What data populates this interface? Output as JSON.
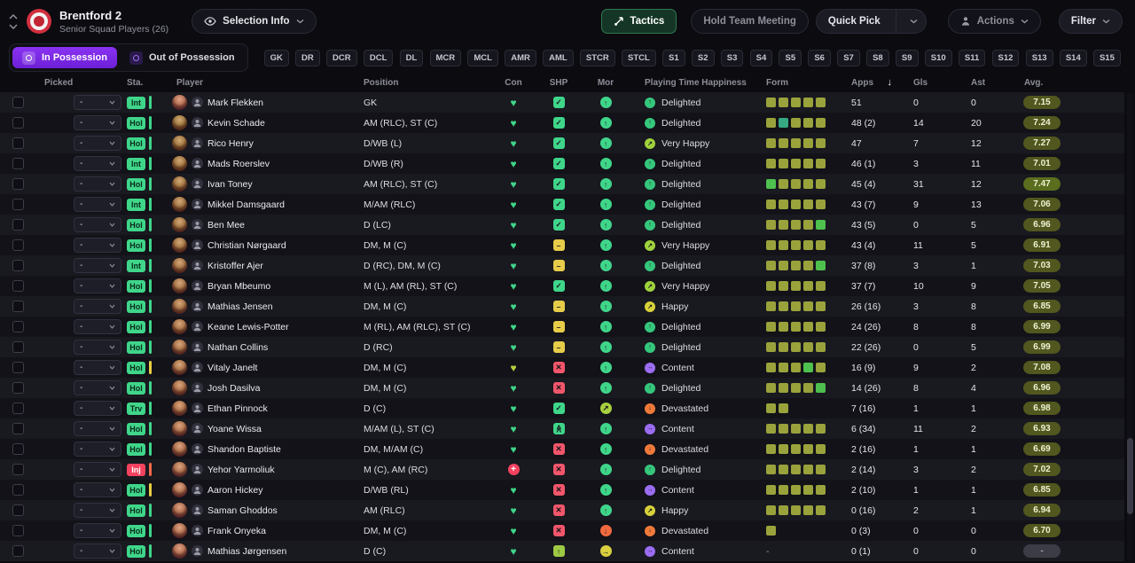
{
  "topbar": {
    "club_name": "Brentford 2",
    "club_subtitle": "Senior Squad Players (26)",
    "selection_info_label": "Selection Info",
    "tactics_label": "Tactics",
    "hold_team_meeting_label": "Hold Team Meeting",
    "quick_pick_label": "Quick Pick",
    "actions_label": "Actions",
    "filter_label": "Filter"
  },
  "possession_tabs": [
    {
      "label": "In Possession",
      "active": true
    },
    {
      "label": "Out of Possession",
      "active": false
    }
  ],
  "position_filters": [
    "GK",
    "DR",
    "DCR",
    "DCL",
    "DL",
    "MCR",
    "MCL",
    "AMR",
    "AML",
    "STCR",
    "STCL",
    "S1",
    "S2",
    "S3",
    "S4",
    "S5",
    "S6",
    "S7",
    "S8",
    "S9",
    "S10",
    "S11",
    "S12",
    "S13",
    "S14",
    "S15"
  ],
  "table": {
    "headers": [
      "Picked",
      "Sta.",
      "Player",
      "Position",
      "Con",
      "SHP",
      "Mor",
      "Playing Time Happiness",
      "Form",
      "Apps",
      "Gls",
      "Ast",
      "Avg."
    ],
    "sort_column": "Apps",
    "rows": [
      {
        "picked": "-",
        "status": "Int",
        "bar": "green",
        "name": "Mark Flekken",
        "position": "GK",
        "con": "fit",
        "shp": "check",
        "mor": "good",
        "happiness": "Delighted",
        "form": [
          "o",
          "o",
          "o",
          "o",
          "o"
        ],
        "apps": "51",
        "gls": "0",
        "ast": "0",
        "avg": "7.15"
      },
      {
        "picked": "-",
        "status": "Hol",
        "bar": "green",
        "name": "Kevin Schade",
        "position": "AM (RLC), ST (C)",
        "con": "fit",
        "shp": "check",
        "mor": "good",
        "happiness": "Delighted",
        "form": [
          "o",
          "t",
          "o",
          "o",
          "o"
        ],
        "apps": "48 (2)",
        "gls": "14",
        "ast": "20",
        "avg": "7.24"
      },
      {
        "picked": "-",
        "status": "Hol",
        "bar": "green",
        "name": "Rico Henry",
        "position": "D/WB (L)",
        "con": "fit",
        "shp": "check",
        "mor": "good",
        "happiness": "Very Happy",
        "form": [
          "o",
          "o",
          "o",
          "o",
          "o"
        ],
        "apps": "47",
        "gls": "7",
        "ast": "12",
        "avg": "7.27"
      },
      {
        "picked": "-",
        "status": "Int",
        "bar": "green",
        "name": "Mads Roerslev",
        "position": "D/WB (R)",
        "con": "fit",
        "shp": "check",
        "mor": "good",
        "happiness": "Delighted",
        "form": [
          "o",
          "o",
          "o",
          "o",
          "o"
        ],
        "apps": "46 (1)",
        "gls": "3",
        "ast": "11",
        "avg": "7.01"
      },
      {
        "picked": "-",
        "status": "Hol",
        "bar": "green",
        "name": "Ivan Toney",
        "position": "AM (RLC), ST (C)",
        "con": "fit",
        "shp": "check",
        "mor": "good",
        "happiness": "Delighted",
        "form": [
          "g",
          "o",
          "o",
          "o",
          "o"
        ],
        "apps": "45 (4)",
        "gls": "31",
        "ast": "12",
        "avg": "7.47"
      },
      {
        "picked": "-",
        "status": "Int",
        "bar": "green",
        "name": "Mikkel Damsgaard",
        "position": "M/AM (RLC)",
        "con": "fit",
        "shp": "check",
        "mor": "good",
        "happiness": "Delighted",
        "form": [
          "o",
          "o",
          "o",
          "o",
          "o"
        ],
        "apps": "43 (7)",
        "gls": "9",
        "ast": "13",
        "avg": "7.06"
      },
      {
        "picked": "-",
        "status": "Hol",
        "bar": "green",
        "name": "Ben Mee",
        "position": "D (LC)",
        "con": "fit",
        "shp": "check",
        "mor": "good",
        "happiness": "Delighted",
        "form": [
          "o",
          "o",
          "o",
          "o",
          "g"
        ],
        "apps": "43 (5)",
        "gls": "0",
        "ast": "5",
        "avg": "6.96"
      },
      {
        "picked": "-",
        "status": "Hol",
        "bar": "green",
        "name": "Christian Nørgaard",
        "position": "DM, M (C)",
        "con": "fit",
        "shp": "dash",
        "mor": "good",
        "happiness": "Very Happy",
        "form": [
          "o",
          "o",
          "o",
          "o",
          "o"
        ],
        "apps": "43 (4)",
        "gls": "11",
        "ast": "5",
        "avg": "6.91"
      },
      {
        "picked": "-",
        "status": "Int",
        "bar": "green",
        "name": "Kristoffer Ajer",
        "position": "D (RC), DM, M (C)",
        "con": "fit",
        "shp": "dash",
        "mor": "good",
        "happiness": "Delighted",
        "form": [
          "o",
          "o",
          "o",
          "o",
          "g"
        ],
        "apps": "37 (8)",
        "gls": "3",
        "ast": "1",
        "avg": "7.03"
      },
      {
        "picked": "-",
        "status": "Hol",
        "bar": "green",
        "name": "Bryan Mbeumo",
        "position": "M (L), AM (RL), ST (C)",
        "con": "fit",
        "shp": "check",
        "mor": "good",
        "happiness": "Very Happy",
        "form": [
          "o",
          "o",
          "o",
          "o",
          "o"
        ],
        "apps": "37 (7)",
        "gls": "10",
        "ast": "9",
        "avg": "7.05"
      },
      {
        "picked": "-",
        "status": "Hol",
        "bar": "green",
        "name": "Mathias Jensen",
        "position": "DM, M (C)",
        "con": "fit",
        "shp": "dash",
        "mor": "good",
        "happiness": "Happy",
        "form": [
          "o",
          "o",
          "o",
          "o",
          "o"
        ],
        "apps": "26 (16)",
        "gls": "3",
        "ast": "8",
        "avg": "6.85"
      },
      {
        "picked": "-",
        "status": "Hol",
        "bar": "green",
        "name": "Keane Lewis-Potter",
        "position": "M (RL), AM (RLC), ST (C)",
        "con": "fit",
        "shp": "dash",
        "mor": "good",
        "happiness": "Delighted",
        "form": [
          "o",
          "o",
          "o",
          "o",
          "o"
        ],
        "apps": "24 (26)",
        "gls": "8",
        "ast": "8",
        "avg": "6.99"
      },
      {
        "picked": "-",
        "status": "Hol",
        "bar": "green",
        "name": "Nathan Collins",
        "position": "D (RC)",
        "con": "fit",
        "shp": "dash",
        "mor": "good",
        "happiness": "Delighted",
        "form": [
          "o",
          "o",
          "o",
          "o",
          "o"
        ],
        "apps": "22 (26)",
        "gls": "0",
        "ast": "5",
        "avg": "6.99"
      },
      {
        "picked": "-",
        "status": "Hol",
        "bar": "yellow",
        "name": "Vitaly Janelt",
        "position": "DM, M (C)",
        "con": "ok",
        "shp": "cross",
        "mor": "good",
        "happiness": "Content",
        "form": [
          "o",
          "o",
          "o",
          "g",
          "o"
        ],
        "apps": "16 (9)",
        "gls": "9",
        "ast": "2",
        "avg": "7.08"
      },
      {
        "picked": "-",
        "status": "Hol",
        "bar": "green",
        "name": "Josh Dasilva",
        "position": "DM, M (C)",
        "con": "fit",
        "shp": "cross",
        "mor": "good",
        "happiness": "Delighted",
        "form": [
          "o",
          "o",
          "o",
          "o",
          "g"
        ],
        "apps": "14 (26)",
        "gls": "8",
        "ast": "4",
        "avg": "6.96"
      },
      {
        "picked": "-",
        "status": "Trv",
        "bar": "green",
        "name": "Ethan Pinnock",
        "position": "D (C)",
        "con": "fit",
        "shp": "check",
        "mor": "ok",
        "happiness": "Devastated",
        "form": [
          "o",
          "o"
        ],
        "apps": "7 (16)",
        "gls": "1",
        "ast": "1",
        "avg": "6.98"
      },
      {
        "picked": "-",
        "status": "Hol",
        "bar": "green",
        "name": "Yoane Wissa",
        "position": "M/AM (L), ST (C)",
        "con": "fit",
        "shp": "rise",
        "mor": "good",
        "happiness": "Content",
        "form": [
          "o",
          "o",
          "o",
          "o",
          "o"
        ],
        "apps": "6 (34)",
        "gls": "11",
        "ast": "2",
        "avg": "6.93"
      },
      {
        "picked": "-",
        "status": "Hol",
        "bar": "green",
        "name": "Shandon Baptiste",
        "position": "DM, M/AM (C)",
        "con": "fit",
        "shp": "cross",
        "mor": "good",
        "happiness": "Devastated",
        "form": [
          "o",
          "o",
          "o",
          "o",
          "o"
        ],
        "apps": "2 (16)",
        "gls": "1",
        "ast": "1",
        "avg": "6.69"
      },
      {
        "picked": "-",
        "status": "Inj",
        "bar": "red",
        "name": "Yehor Yarmoliuk",
        "position": "M (C), AM (RC)",
        "con": "medical",
        "shp": "cross",
        "mor": "good",
        "happiness": "Delighted",
        "form": [
          "o",
          "o",
          "o",
          "o",
          "o"
        ],
        "apps": "2 (14)",
        "gls": "3",
        "ast": "2",
        "avg": "7.02"
      },
      {
        "picked": "-",
        "status": "Hol",
        "bar": "yellow",
        "name": "Aaron Hickey",
        "position": "D/WB (RL)",
        "con": "fit",
        "shp": "cross",
        "mor": "good",
        "happiness": "Content",
        "form": [
          "o",
          "o",
          "o",
          "o",
          "o"
        ],
        "apps": "2 (10)",
        "gls": "1",
        "ast": "1",
        "avg": "6.85"
      },
      {
        "picked": "-",
        "status": "Hol",
        "bar": "green",
        "name": "Saman Ghoddos",
        "position": "AM (RLC)",
        "con": "fit",
        "shp": "cross",
        "mor": "good",
        "happiness": "Happy",
        "form": [
          "o",
          "o",
          "o",
          "o",
          "o"
        ],
        "apps": "0 (16)",
        "gls": "2",
        "ast": "1",
        "avg": "6.94"
      },
      {
        "picked": "-",
        "status": "Hol",
        "bar": "green",
        "name": "Frank Onyeka",
        "position": "DM, M (C)",
        "con": "fit",
        "shp": "cross",
        "mor": "poor",
        "happiness": "Devastated",
        "form": [
          "o"
        ],
        "apps": "0 (3)",
        "gls": "0",
        "ast": "0",
        "avg": "6.70"
      },
      {
        "picked": "-",
        "status": "Hol",
        "bar": "green",
        "name": "Mathias Jørgensen",
        "position": "D (C)",
        "con": "fit",
        "shp": "up",
        "mor": "low",
        "happiness": "Content",
        "form": [],
        "apps": "0 (1)",
        "gls": "0",
        "ast": "0",
        "avg": "-"
      }
    ]
  },
  "palette": {
    "accent_purple": "#7b2ff2",
    "tactics_green": "#2f7a50",
    "status_green": "#3fd68a",
    "status_red": "#f4425e",
    "bars": {
      "green": "#3fd68a",
      "yellow": "#e8cf44",
      "red": "#f4694b"
    },
    "condition": {
      "fit": "#3fd68a",
      "ok": "#b9d23f",
      "medical": "#f4425e"
    },
    "sharpness": {
      "check": {
        "glyph": "✓",
        "color": "#3fd68a"
      },
      "dash": {
        "glyph": "–",
        "color": "#e6cc48"
      },
      "cross": {
        "glyph": "✕",
        "color": "#f2566b"
      },
      "rise": {
        "glyph": "≫",
        "color": "#3fd68a"
      },
      "up": {
        "glyph": "↑",
        "color": "#9ec943"
      }
    },
    "morale": {
      "good": {
        "glyph": "↑",
        "color": "#3fd68a"
      },
      "ok": {
        "glyph": "↗",
        "color": "#a8cf3f"
      },
      "low": {
        "glyph": "→",
        "color": "#d9cf3f"
      },
      "poor": {
        "glyph": "↓",
        "color": "#f0693f"
      }
    },
    "happiness": {
      "Delighted": {
        "glyph": "↑",
        "color": "#35c77c"
      },
      "Very Happy": {
        "glyph": "↗",
        "color": "#9fd23d"
      },
      "Happy": {
        "glyph": "↗",
        "color": "#d8d23a"
      },
      "Content": {
        "glyph": "→",
        "color": "#9b6df2"
      },
      "Devastated": {
        "glyph": "↓",
        "color": "#f07a3a"
      }
    },
    "form": {
      "o": "#9aa23c",
      "g": "#4ec04e",
      "t": "#36a882"
    },
    "avg_bg": "#51571e",
    "avg_high_bg": "#5a6e1e",
    "avg_empty_bg": "#3c3c46"
  }
}
